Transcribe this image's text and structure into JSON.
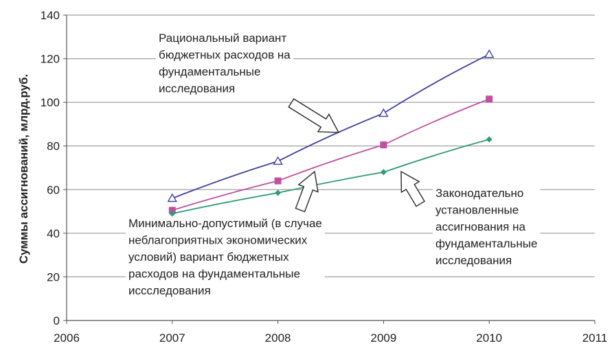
{
  "chart_data": {
    "type": "line",
    "xlabel": "",
    "ylabel": "Суммы ассигнований, млрд.руб.",
    "xlim": [
      2006,
      2011
    ],
    "ylim": [
      0,
      140
    ],
    "x_ticks": [
      2006,
      2007,
      2008,
      2009,
      2010,
      2011
    ],
    "y_ticks": [
      0,
      20,
      40,
      60,
      80,
      100,
      120,
      140
    ],
    "grid": true,
    "legend": "none",
    "x": [
      2007,
      2008,
      2009,
      2010
    ],
    "series": [
      {
        "key": "rational",
        "values": [
          56,
          73,
          95,
          122
        ],
        "color": "#3f3f9f",
        "marker": "triangle-open"
      },
      {
        "key": "minimal",
        "values": [
          50.5,
          64,
          80.5,
          101.5
        ],
        "color": "#c04fa0",
        "marker": "square"
      },
      {
        "key": "legislated",
        "values": [
          49,
          58.5,
          68,
          83
        ],
        "color": "#2f9a78",
        "marker": "diamond"
      }
    ],
    "annotations": [
      {
        "key": "rational",
        "lines": [
          "Рациональный вариант",
          "бюджетных расходов на",
          "фундаментальные",
          "исследования"
        ]
      },
      {
        "key": "minimal",
        "lines": [
          "Минимально-допустимый (в случае",
          "неблагоприятных экономических",
          "условий) вариант бюджетных",
          "расходов на фундаментальные",
          "иссследования"
        ]
      },
      {
        "key": "legislated",
        "lines": [
          "Законодательно",
          "установленные",
          "ассигнования на",
          "фундаментальные",
          "исследования"
        ]
      }
    ]
  }
}
